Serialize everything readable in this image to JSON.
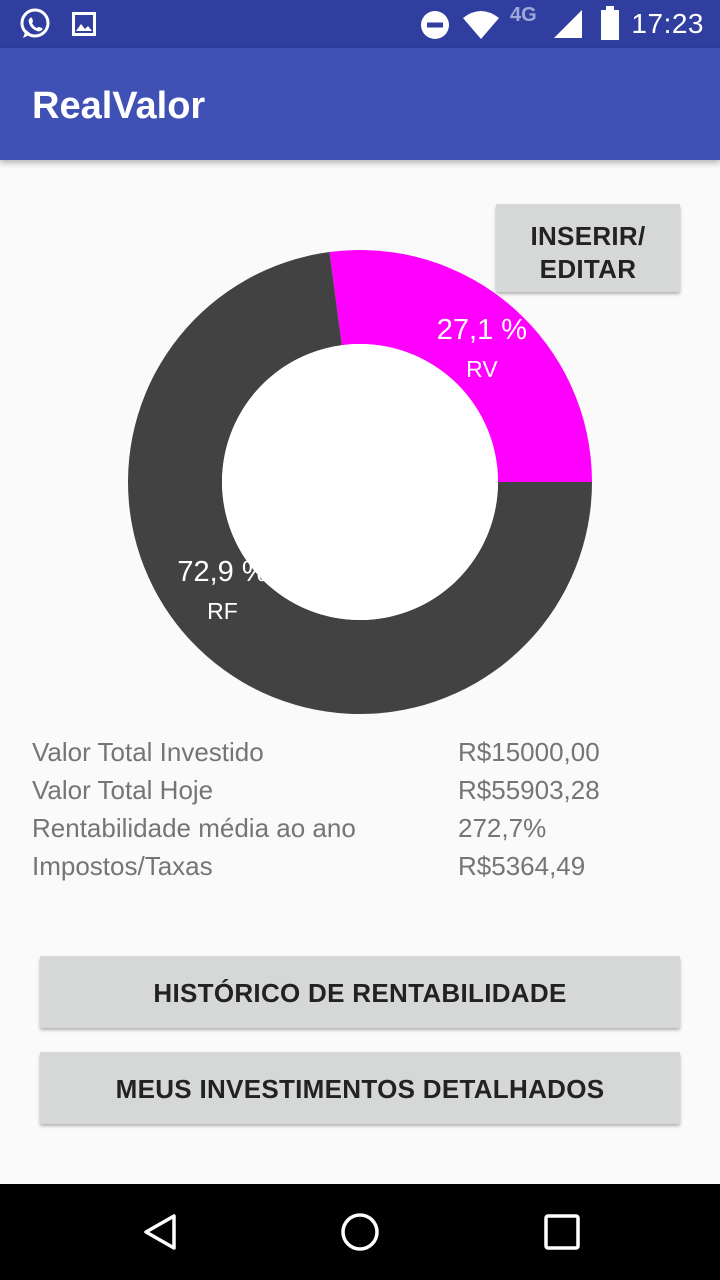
{
  "status_bar": {
    "time": "17:23",
    "network": "4G",
    "icons": [
      "whatsapp-icon",
      "gallery-icon",
      "do-not-disturb-icon",
      "wifi-icon",
      "signal-icon",
      "battery-icon"
    ],
    "bg": "#303f9f"
  },
  "app_bar": {
    "title": "RealValor",
    "bg": "#3f51b5"
  },
  "edit_button": {
    "line1": "INSERIR/",
    "line2": "EDITAR"
  },
  "chart_data": {
    "type": "pie",
    "donut": true,
    "slices": [
      {
        "label": "RV",
        "value": 27.1,
        "value_text": "27,1 %",
        "color": "#ff00ff"
      },
      {
        "label": "RF",
        "value": 72.9,
        "value_text": "72,9 %",
        "color": "#424242"
      }
    ]
  },
  "stats": [
    {
      "label": "Valor Total Investido",
      "value": "R$15000,00"
    },
    {
      "label": "Valor Total Hoje",
      "value": "R$55903,28"
    },
    {
      "label": "Rentabilidade média ao ano",
      "value": "272,7%"
    },
    {
      "label": "Impostos/Taxas",
      "value": "R$5364,49"
    }
  ],
  "buttons": {
    "historico": "HISTÓRICO DE RENTABILIDADE",
    "meus": "MEUS INVESTIMENTOS DETALHADOS"
  },
  "nav_bar": {
    "icons": [
      "back-icon",
      "home-icon",
      "recents-icon"
    ]
  }
}
